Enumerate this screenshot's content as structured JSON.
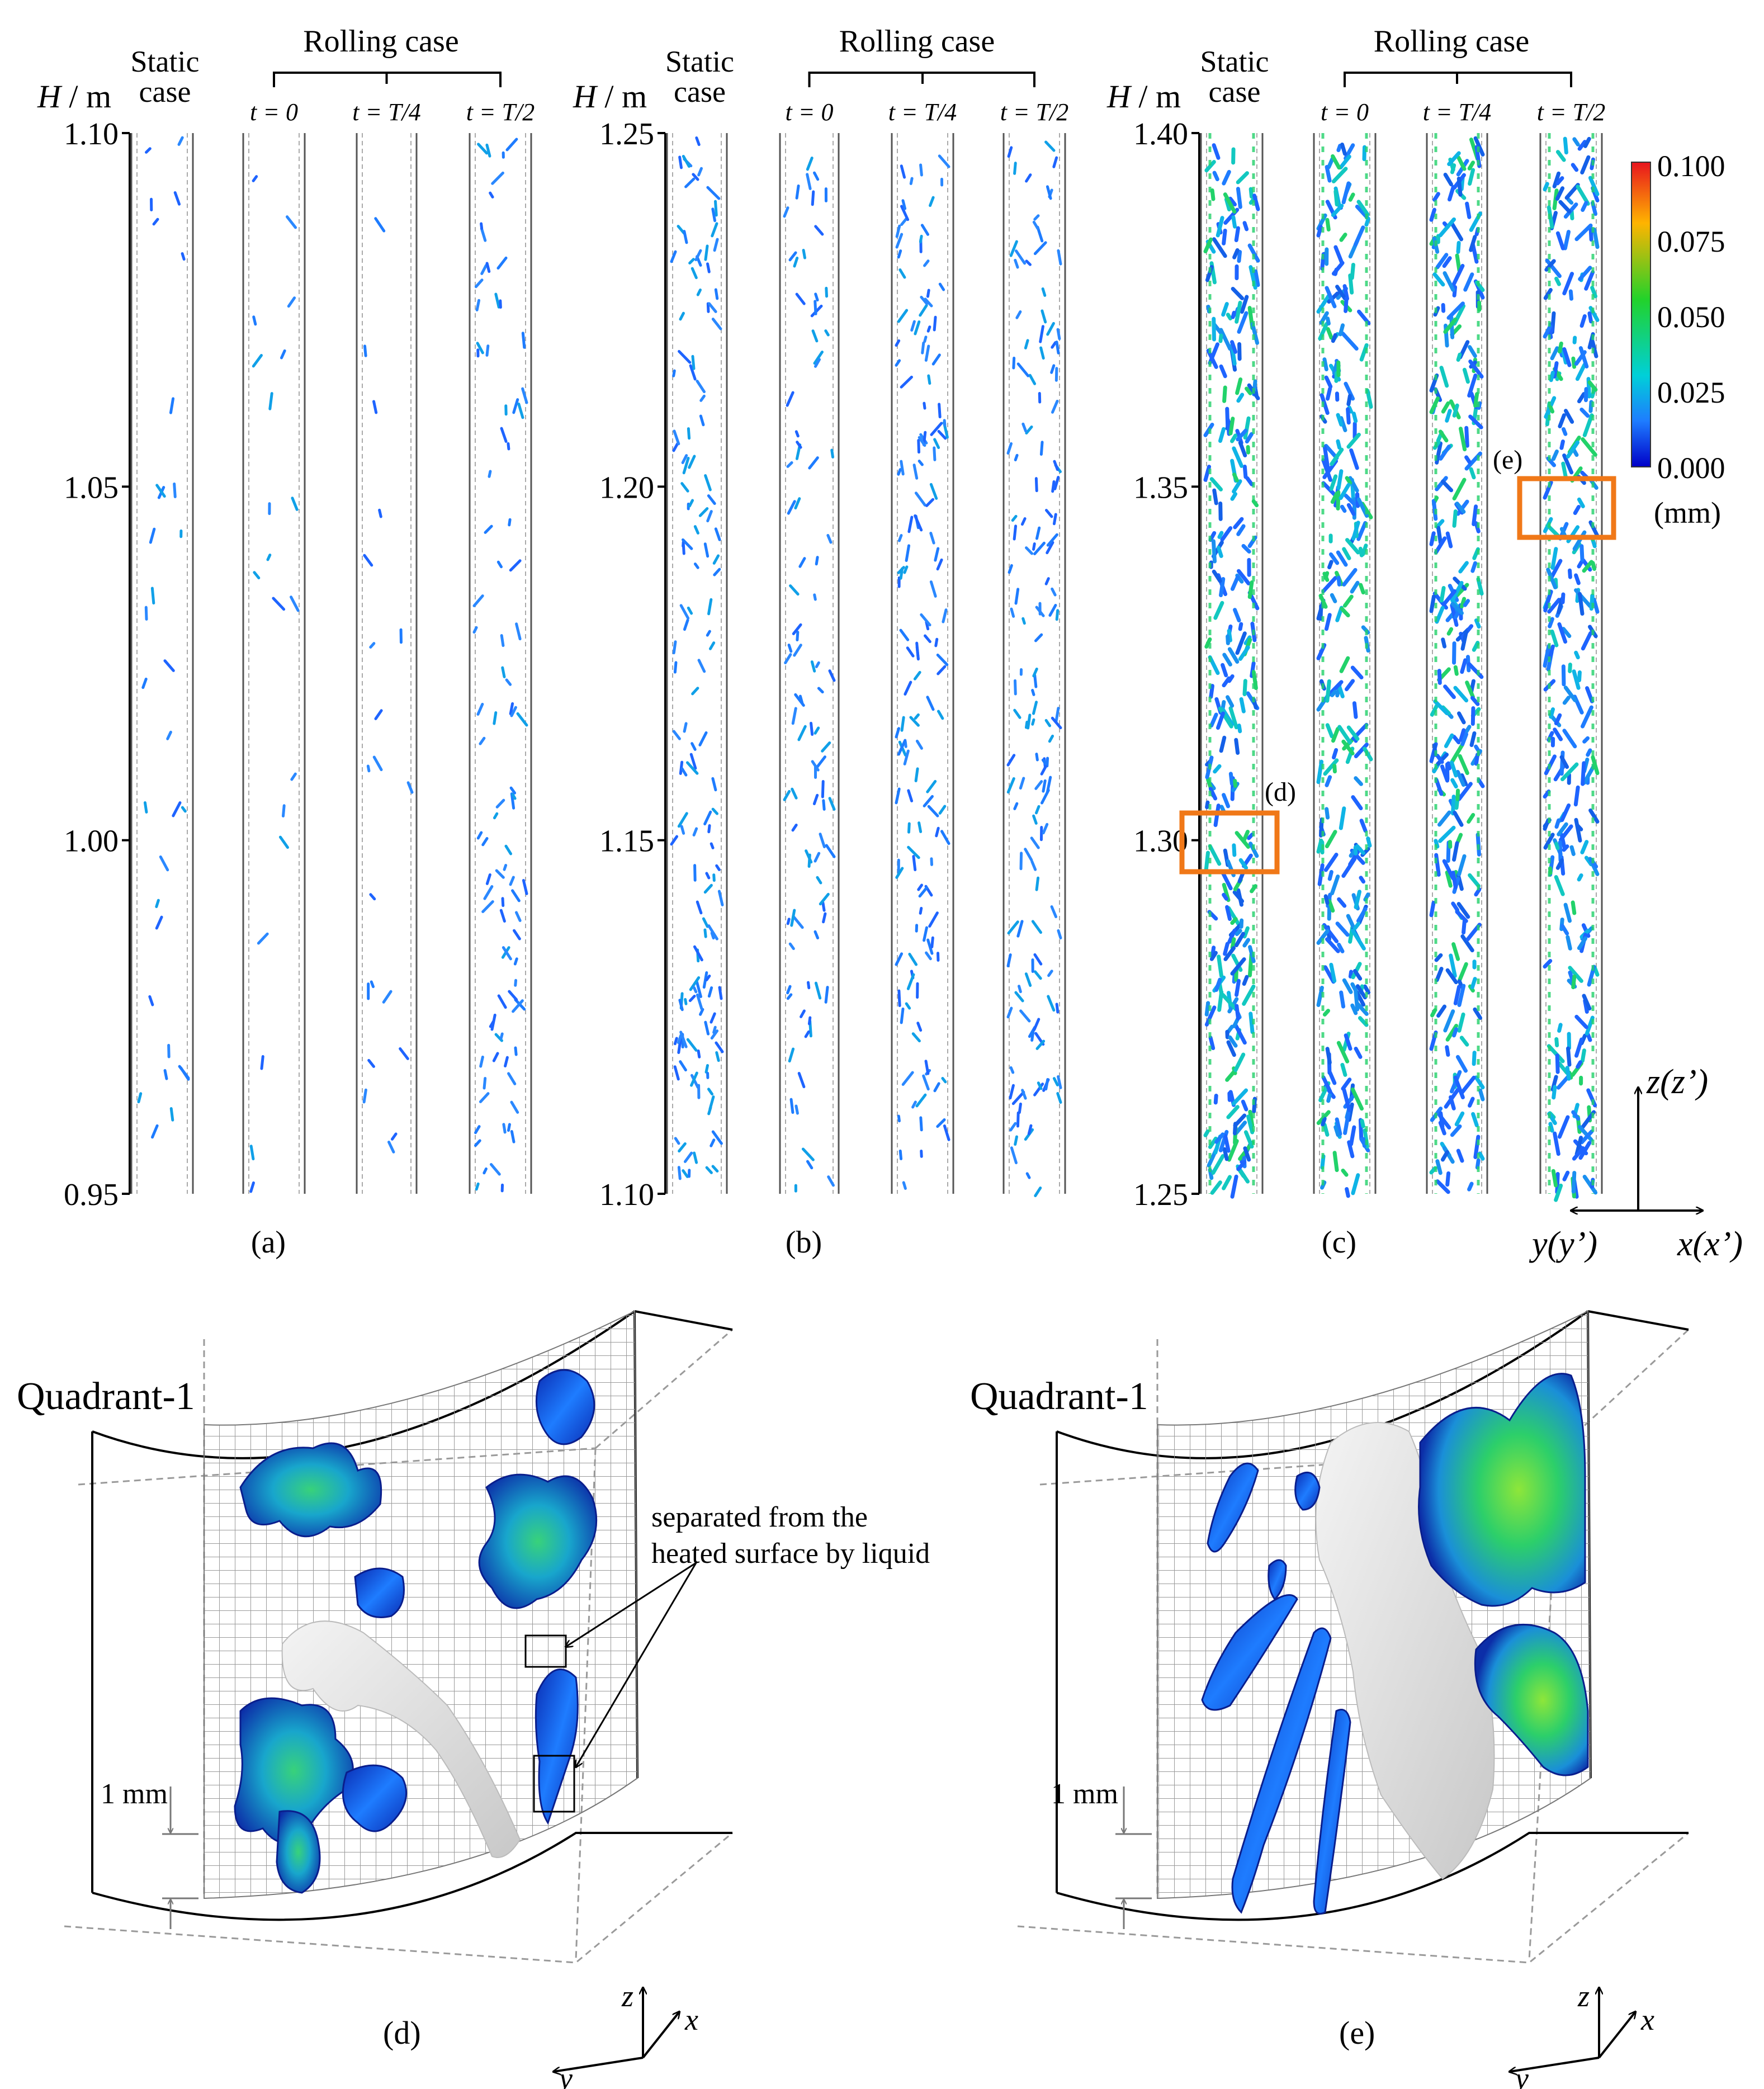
{
  "colorbar": {
    "ticks": [
      "0.100",
      "0.075",
      "0.050",
      "0.025",
      "0.000"
    ],
    "unit": "(mm)",
    "colors": [
      "#ff2a00",
      "#ffcf00",
      "#33dd22",
      "#00d8d8",
      "#1e64ff",
      "#0000d8"
    ]
  },
  "panels": [
    {
      "label": "(a)",
      "axis_label": "H / m",
      "ticks": [
        "1.10",
        "1.05",
        "1.00",
        "0.95"
      ],
      "static_label": [
        "Static",
        "case"
      ],
      "rolling_label": "Rolling case",
      "time_labels": [
        "t = 0",
        "t = T/4",
        "t = T/2"
      ],
      "density": 0.12
    },
    {
      "label": "(b)",
      "axis_label": "H / m",
      "ticks": [
        "1.25",
        "1.20",
        "1.15",
        "1.10"
      ],
      "static_label": [
        "Static",
        "case"
      ],
      "rolling_label": "Rolling case",
      "time_labels": [
        "t = 0",
        "t = T/4",
        "t = T/2"
      ],
      "density": 0.55
    },
    {
      "label": "(c)",
      "axis_label": "H / m",
      "ticks": [
        "1.40",
        "1.35",
        "1.30",
        "1.25"
      ],
      "static_label": [
        "Static",
        "case"
      ],
      "rolling_label": "Rolling case",
      "time_labels": [
        "t = 0",
        "t = T/4",
        "t = T/2"
      ],
      "density": 1.0
    }
  ],
  "box_labels": [
    "(d)",
    "(e)"
  ],
  "axes_top": {
    "z": "z(z’)",
    "y": "y(y’)",
    "x": "x(x’)"
  },
  "bottom_panels": [
    {
      "title": "Quadrant-1",
      "label": "(d)",
      "scale": "1 mm",
      "ax_z": "z",
      "ax_x": "x",
      "ax_y": "y"
    },
    {
      "title": "Quadrant-1",
      "label": "(e)",
      "scale": "1 mm",
      "ax_z": "z",
      "ax_x": "x",
      "ax_y": "y"
    }
  ],
  "annotation": [
    "separated from the",
    "heated surface by liquid"
  ]
}
